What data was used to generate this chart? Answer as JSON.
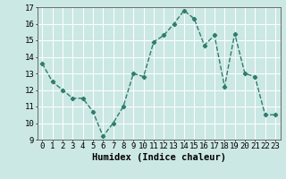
{
  "x": [
    0,
    1,
    2,
    3,
    4,
    5,
    6,
    7,
    8,
    9,
    10,
    11,
    12,
    13,
    14,
    15,
    16,
    17,
    18,
    19,
    20,
    21,
    22,
    23
  ],
  "y": [
    13.6,
    12.5,
    12.0,
    11.5,
    11.5,
    10.7,
    9.2,
    10.0,
    11.0,
    13.0,
    12.8,
    14.9,
    15.3,
    16.0,
    16.8,
    16.3,
    14.7,
    15.3,
    12.2,
    15.4,
    13.0,
    12.8,
    10.5,
    10.5
  ],
  "line_color": "#2e7d6e",
  "marker": "D",
  "marker_size": 2.2,
  "line_width": 1.0,
  "bg_color": "#cce8e4",
  "grid_color": "#ffffff",
  "xlabel": "Humidex (Indice chaleur)",
  "xlabel_fontsize": 7.5,
  "tick_fontsize": 6.5,
  "ylim": [
    9,
    17
  ],
  "xlim": [
    -0.5,
    23.5
  ],
  "yticks": [
    9,
    10,
    11,
    12,
    13,
    14,
    15,
    16,
    17
  ],
  "xticks": [
    0,
    1,
    2,
    3,
    4,
    5,
    6,
    7,
    8,
    9,
    10,
    11,
    12,
    13,
    14,
    15,
    16,
    17,
    18,
    19,
    20,
    21,
    22,
    23
  ]
}
